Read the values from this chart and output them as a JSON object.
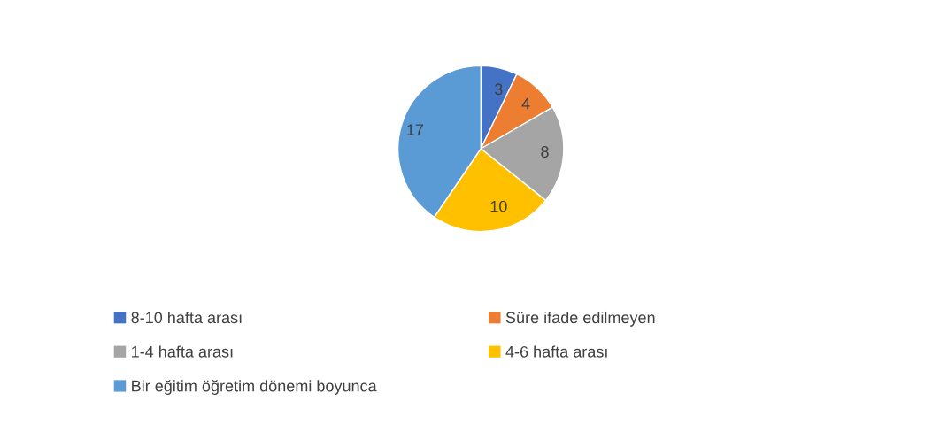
{
  "chart_data": {
    "type": "pie",
    "categories": [
      "8-10 hafta arası",
      "Süre ifade edilmeyen",
      "1-4 hafta arası",
      "4-6 hafta arası",
      "Bir eğitim öğretim dönemi boyunca"
    ],
    "values": [
      3,
      4,
      8,
      10,
      17
    ],
    "colors": [
      "#4472c4",
      "#ed7d31",
      "#a5a5a5",
      "#ffc000",
      "#5b9bd5"
    ],
    "data_labels": true,
    "legend": "bottom"
  }
}
